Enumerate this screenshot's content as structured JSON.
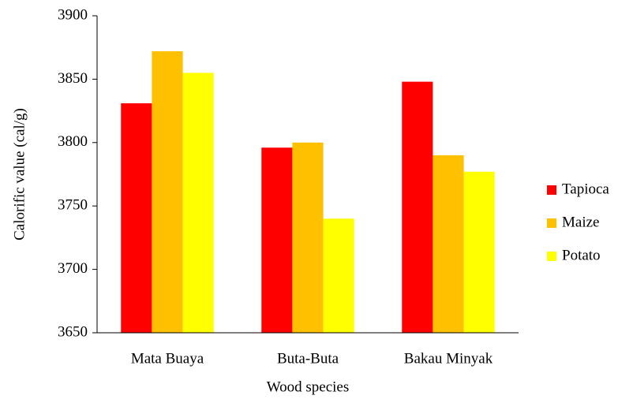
{
  "chart_data": {
    "type": "bar",
    "x_label": "Wood species",
    "y_label": "Calorific value (cal/g)",
    "categories": [
      "Mata Buaya",
      "Buta-Buta",
      "Bakau Minyak"
    ],
    "series": [
      {
        "name": "Tapioca",
        "color": "#ff0000",
        "values": [
          3831,
          3796,
          3848
        ]
      },
      {
        "name": "Maize",
        "color": "#ffc000",
        "values": [
          3872,
          3800,
          3790
        ]
      },
      {
        "name": "Potato",
        "color": "#ffff00",
        "values": [
          3855,
          3740,
          3777
        ]
      }
    ],
    "ylim": [
      3650,
      3900
    ],
    "yticks": [
      3650,
      3700,
      3750,
      3800,
      3850,
      3900
    ],
    "grid": false,
    "legend": "right"
  }
}
